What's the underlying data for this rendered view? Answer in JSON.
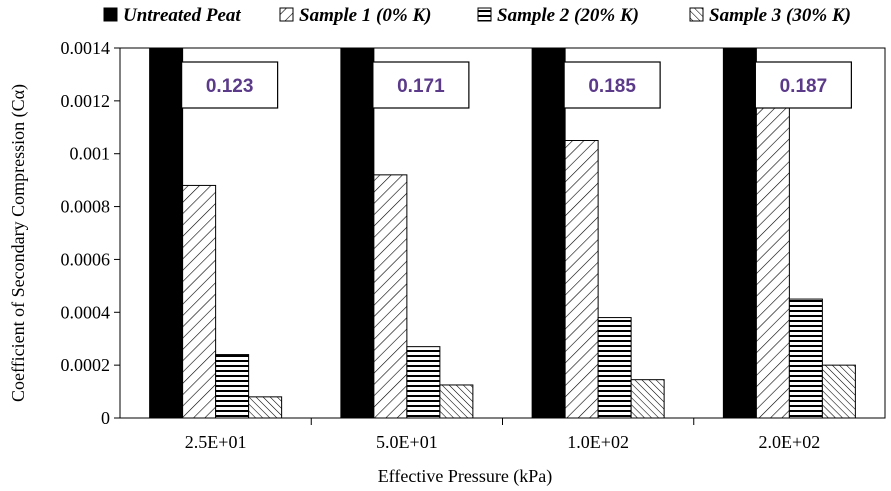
{
  "chart_data": {
    "type": "bar",
    "ylabel": "Coefficient of Secondary Compression (Cα)",
    "xlabel": "Effective Pressure (kPa)",
    "categories": [
      "2.5E+01",
      "5.0E+01",
      "1.0E+02",
      "2.0E+02"
    ],
    "ylim": [
      0,
      0.0014
    ],
    "yticks": [
      0,
      0.0002,
      0.0004,
      0.0006,
      0.0008,
      0.001,
      0.0012,
      0.0014
    ],
    "ytick_labels": [
      "0",
      "0.0002",
      "0.0004",
      "0.0006",
      "0.0008",
      "0.001",
      "0.0012",
      "0.0014"
    ],
    "grid": false,
    "legend_position": "top",
    "series": [
      {
        "name": "Untreated Peat",
        "values": [
          0.0014,
          0.0014,
          0.0014,
          0.0014
        ],
        "fill": "solid-black"
      },
      {
        "name": "Sample 1 (0% K)",
        "values": [
          0.00088,
          0.00092,
          0.00105,
          0.0013
        ],
        "fill": "wide-diagonal-hatch"
      },
      {
        "name": "Sample 2 (20% K)",
        "values": [
          0.00024,
          0.00027,
          0.00038,
          0.00045
        ],
        "fill": "horizontal-hatch"
      },
      {
        "name": "Sample 3 (30% K)",
        "values": [
          8e-05,
          0.000125,
          0.000145,
          0.0002
        ],
        "fill": "narrow-diagonal-hatch"
      }
    ],
    "annotations": [
      "0.123",
      "0.171",
      "0.185",
      "0.187"
    ],
    "annotation_color": "#5b3a8a"
  }
}
